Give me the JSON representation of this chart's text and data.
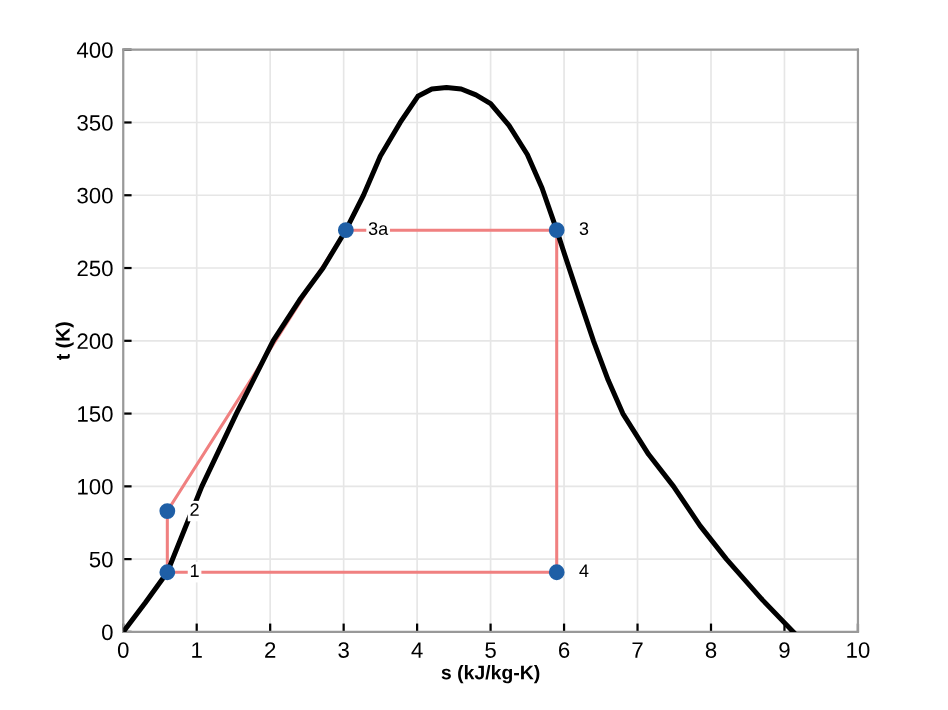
{
  "chart_data": {
    "type": "line",
    "xlabel": "s (kJ/kg-K)",
    "ylabel": "t (K)",
    "series": [
      {
        "color": "#000000",
        "x": [
          0,
          0.3,
          0.6,
          1.07,
          1.54,
          2.04,
          2.4,
          2.72,
          3.03,
          3.27,
          3.5,
          3.77,
          4.01,
          4.2,
          4.4,
          4.6,
          4.8,
          5.0,
          5.25,
          5.5,
          5.7,
          5.9,
          5.99,
          6.2,
          6.4,
          6.6,
          6.8,
          7.15,
          7.49,
          7.85,
          8.21,
          8.7,
          9.12
        ],
        "values": [
          0,
          20,
          41,
          100,
          150,
          200,
          228,
          250,
          276,
          300,
          327,
          350,
          368,
          373,
          374,
          373,
          369,
          363,
          348,
          328,
          305,
          276,
          262,
          230,
          200,
          173,
          150,
          122,
          100,
          73,
          50,
          22,
          0
        ]
      },
      {
        "color": "#f08080",
        "x": [
          0.6,
          0.6,
          3.03,
          5.9
        ],
        "values": [
          41,
          83,
          276,
          276
        ]
      },
      {
        "color": "#f08080",
        "x": [
          5.9,
          5.9,
          0.6
        ],
        "values": [
          276,
          41,
          41
        ]
      },
      {
        "type": "scatter",
        "color": "#1f5fa6",
        "marker": "circle",
        "x": [
          0.6,
          0.6,
          3.03,
          5.9,
          5.9
        ],
        "values": [
          41,
          83,
          276,
          276,
          41
        ]
      }
    ],
    "annotations": [
      {
        "text": "1",
        "x": 0.6,
        "y": 41
      },
      {
        "text": "2",
        "x": 0.6,
        "y": 83
      },
      {
        "text": "3a",
        "x": 3.03,
        "y": 276
      },
      {
        "text": "3",
        "x": 5.9,
        "y": 276
      },
      {
        "text": "4",
        "x": 5.9,
        "y": 41
      }
    ],
    "xlim": [
      0,
      10
    ],
    "ylim": [
      0,
      400
    ],
    "xticks": [
      0,
      1,
      2,
      3,
      4,
      5,
      6,
      7,
      8,
      9,
      10
    ],
    "yticks": [
      0,
      50,
      100,
      150,
      200,
      250,
      300,
      350,
      400
    ],
    "grid": true
  }
}
